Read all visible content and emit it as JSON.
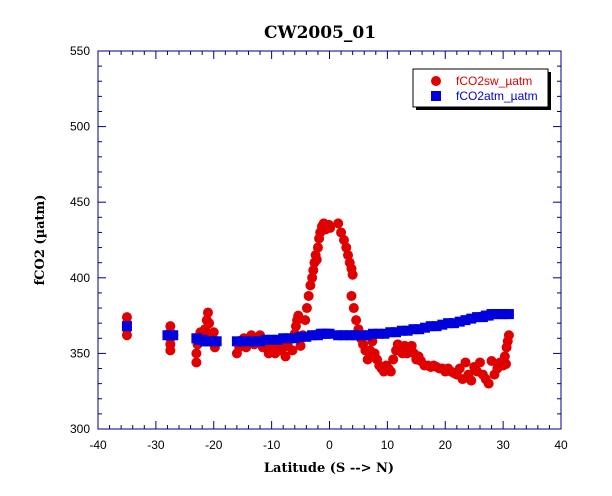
{
  "chart_data": {
    "type": "scatter",
    "title": "CW2005_01",
    "xlabel": "Latitude (S --> N)",
    "ylabel": "fCO2 (µatm)",
    "xlim": [
      -40,
      40
    ],
    "ylim": [
      300,
      550
    ],
    "xticks": [
      -40,
      -30,
      -20,
      -10,
      0,
      10,
      20,
      30,
      40
    ],
    "yticks": [
      300,
      350,
      400,
      450,
      500,
      550
    ],
    "legend_position": "top-right",
    "grid": false,
    "series": [
      {
        "name": "fCO2sw_µatm",
        "color": "#e00000",
        "marker": "circle",
        "points": [
          [
            -35,
            362
          ],
          [
            -35,
            366
          ],
          [
            -35,
            370
          ],
          [
            -35,
            374
          ],
          [
            -27.5,
            352
          ],
          [
            -27.5,
            356
          ],
          [
            -27.5,
            360
          ],
          [
            -27.5,
            364
          ],
          [
            -27.5,
            368
          ],
          [
            -27,
            362
          ],
          [
            -23,
            344
          ],
          [
            -23,
            350
          ],
          [
            -22.8,
            356
          ],
          [
            -22.5,
            360
          ],
          [
            -22.3,
            364
          ],
          [
            -22,
            362
          ],
          [
            -21.5,
            366
          ],
          [
            -21.2,
            372
          ],
          [
            -21,
            377
          ],
          [
            -20.8,
            370
          ],
          [
            -20.5,
            362
          ],
          [
            -20.2,
            358
          ],
          [
            -20,
            364
          ],
          [
            -19.8,
            354
          ],
          [
            -16,
            350
          ],
          [
            -15.6,
            354
          ],
          [
            -15.2,
            357
          ],
          [
            -14.8,
            360
          ],
          [
            -14.4,
            354
          ],
          [
            -14,
            358
          ],
          [
            -13.5,
            362
          ],
          [
            -13,
            356
          ],
          [
            -12.5,
            360
          ],
          [
            -12,
            362
          ],
          [
            -11.5,
            354
          ],
          [
            -11,
            357
          ],
          [
            -10.5,
            350
          ],
          [
            -10.2,
            356
          ],
          [
            -9.8,
            352
          ],
          [
            -9.4,
            350
          ],
          [
            -9,
            356
          ],
          [
            -8.5,
            352
          ],
          [
            -8,
            354
          ],
          [
            -7.6,
            348
          ],
          [
            -7.2,
            355
          ],
          [
            -6.8,
            360
          ],
          [
            -6.4,
            352
          ],
          [
            -6,
            363
          ],
          [
            -5.8,
            368
          ],
          [
            -5.6,
            372
          ],
          [
            -5.4,
            375
          ],
          [
            -5,
            355
          ],
          [
            -4.6,
            362
          ],
          [
            -4.2,
            372
          ],
          [
            -3.9,
            380
          ],
          [
            -3.6,
            388
          ],
          [
            -3.3,
            395
          ],
          [
            -3,
            400
          ],
          [
            -2.8,
            405
          ],
          [
            -2.6,
            410
          ],
          [
            -2.4,
            415
          ],
          [
            -2.2,
            412
          ],
          [
            -2,
            420
          ],
          [
            -1.8,
            426
          ],
          [
            -1.6,
            430
          ],
          [
            -1.3,
            434
          ],
          [
            -1.0,
            436
          ],
          [
            -0.7,
            432
          ],
          [
            -0.4,
            434
          ],
          [
            -0.1,
            435
          ],
          [
            0.1,
            433
          ],
          [
            1.5,
            436
          ],
          [
            2,
            430
          ],
          [
            2.5,
            425
          ],
          [
            2.9,
            420
          ],
          [
            3.2,
            415
          ],
          [
            3.5,
            410
          ],
          [
            3.8,
            406
          ],
          [
            4,
            402
          ],
          [
            3.8,
            388
          ],
          [
            4.2,
            380
          ],
          [
            4.6,
            372
          ],
          [
            5,
            366
          ],
          [
            5.4,
            360
          ],
          [
            5.8,
            356
          ],
          [
            6.2,
            352
          ],
          [
            6.6,
            346
          ],
          [
            7,
            352
          ],
          [
            7.4,
            358
          ],
          [
            7.8,
            350
          ],
          [
            8.2,
            346
          ],
          [
            8.6,
            342
          ],
          [
            9,
            340
          ],
          [
            9.4,
            338
          ],
          [
            9.8,
            342
          ],
          [
            10.2,
            340
          ],
          [
            10.6,
            338
          ],
          [
            11,
            346
          ],
          [
            11.5,
            352
          ],
          [
            11.8,
            356
          ],
          [
            12.2,
            354
          ],
          [
            12.6,
            350
          ],
          [
            13,
            355
          ],
          [
            13.4,
            350
          ],
          [
            13.8,
            352
          ],
          [
            14.2,
            355
          ],
          [
            14.6,
            350
          ],
          [
            15,
            346
          ],
          [
            15.4,
            348
          ],
          [
            15.8,
            345
          ],
          [
            16.4,
            342
          ],
          [
            17,
            342
          ],
          [
            17.5,
            341
          ],
          [
            18,
            342
          ],
          [
            18.5,
            341
          ],
          [
            19,
            340
          ],
          [
            19.5,
            340
          ],
          [
            20,
            338
          ],
          [
            20.5,
            340
          ],
          [
            21,
            338
          ],
          [
            21.5,
            337
          ],
          [
            22,
            336
          ],
          [
            22.5,
            340
          ],
          [
            23,
            333
          ],
          [
            23.5,
            344
          ],
          [
            24,
            336
          ],
          [
            24.5,
            332
          ],
          [
            25,
            341
          ],
          [
            25.5,
            338
          ],
          [
            26,
            344
          ],
          [
            26.5,
            336
          ],
          [
            27,
            333
          ],
          [
            27.5,
            330
          ],
          [
            28,
            345
          ],
          [
            28.5,
            336
          ],
          [
            29,
            340
          ],
          [
            29.5,
            344
          ],
          [
            30,
            342
          ],
          [
            30.3,
            348
          ],
          [
            30.6,
            354
          ],
          [
            30.8,
            358
          ],
          [
            31,
            362
          ],
          [
            30.5,
            343
          ]
        ]
      },
      {
        "name": "fCO2atm_µatm",
        "color": "#0000dd",
        "marker": "square",
        "points": [
          [
            -35,
            368
          ],
          [
            -28,
            362
          ],
          [
            -27.5,
            362
          ],
          [
            -27,
            362
          ],
          [
            -23,
            360
          ],
          [
            -22.5,
            359
          ],
          [
            -22,
            359
          ],
          [
            -21.5,
            358
          ],
          [
            -21,
            358
          ],
          [
            -20.5,
            358
          ],
          [
            -20,
            358
          ],
          [
            -19.5,
            358
          ],
          [
            -16,
            358
          ],
          [
            -15,
            358
          ],
          [
            -14,
            358
          ],
          [
            -13,
            358
          ],
          [
            -12,
            358
          ],
          [
            -11,
            359
          ],
          [
            -10,
            359
          ],
          [
            -9,
            359
          ],
          [
            -8,
            360
          ],
          [
            -7,
            360
          ],
          [
            -6,
            360
          ],
          [
            -5,
            361
          ],
          [
            -4,
            361
          ],
          [
            -3,
            362
          ],
          [
            -2,
            362
          ],
          [
            -1.5,
            363
          ],
          [
            -1,
            363
          ],
          [
            -0.5,
            363
          ],
          [
            0,
            363
          ],
          [
            1.5,
            362
          ],
          [
            2.5,
            362
          ],
          [
            3.5,
            362
          ],
          [
            4.5,
            362
          ],
          [
            5.5,
            362
          ],
          [
            6.5,
            362
          ],
          [
            7.5,
            363
          ],
          [
            8.5,
            363
          ],
          [
            9.5,
            363
          ],
          [
            10.5,
            364
          ],
          [
            11.5,
            364
          ],
          [
            12.5,
            365
          ],
          [
            13.5,
            365
          ],
          [
            14.5,
            366
          ],
          [
            15.5,
            366
          ],
          [
            16.5,
            367
          ],
          [
            17.5,
            368
          ],
          [
            18.5,
            368
          ],
          [
            19.5,
            369
          ],
          [
            20.5,
            370
          ],
          [
            21.5,
            370
          ],
          [
            22.5,
            371
          ],
          [
            23.5,
            372
          ],
          [
            24.5,
            373
          ],
          [
            25.5,
            374
          ],
          [
            26.5,
            374
          ],
          [
            27,
            375
          ],
          [
            27.5,
            375
          ],
          [
            28,
            376
          ],
          [
            28.5,
            376
          ],
          [
            29,
            376
          ],
          [
            29.5,
            376
          ],
          [
            30,
            376
          ],
          [
            30.5,
            376
          ],
          [
            31,
            376
          ]
        ]
      }
    ]
  }
}
